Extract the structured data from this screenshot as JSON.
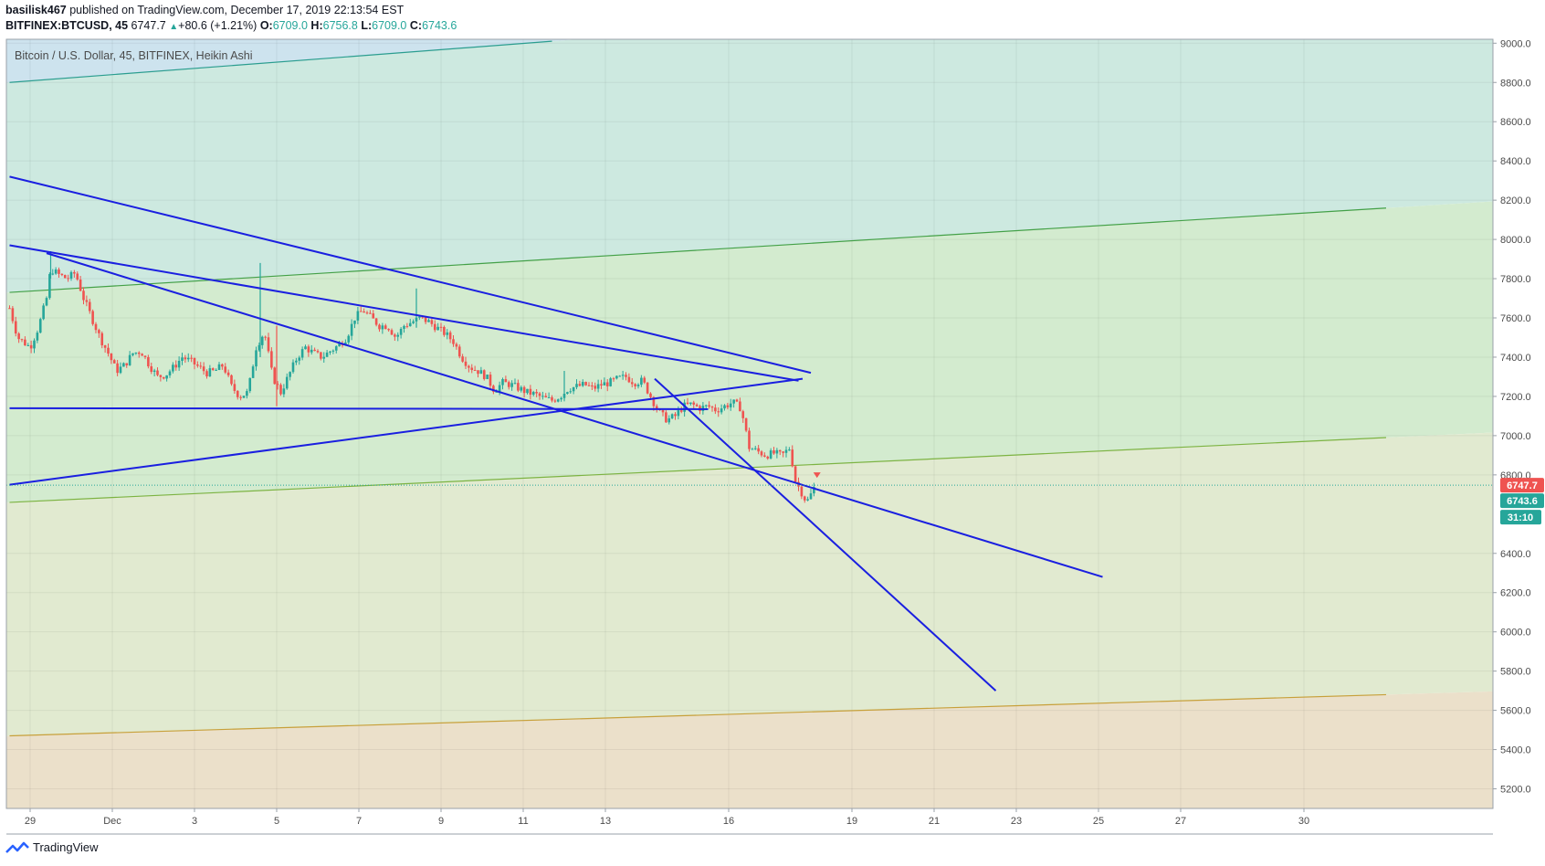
{
  "header": {
    "author": "basilisk467",
    "published_text": " published on TradingView.com, December 17, 2019 22:13:54 EST",
    "symbol": "BITFINEX:BTCUSD, 45",
    "last": "6747.7",
    "change": "+80.6 (+1.21%)",
    "o_label": "O:",
    "o_val": "6709.0",
    "h_label": "H:",
    "h_val": "6756.8",
    "l_label": "L:",
    "l_val": "6709.0",
    "c_label": "C:",
    "c_val": "6743.6"
  },
  "footer": {
    "brand": "TradingView"
  },
  "chart_data": {
    "type": "candlestick",
    "title": "Bitcoin / U.S. Dollar, 45, BITFINEX, Heikin Ashi",
    "ylim": [
      5100,
      9020
    ],
    "y_ticks": [
      "9000.0",
      "8800.0",
      "8600.0",
      "8400.0",
      "8200.0",
      "8000.0",
      "7800.0",
      "7600.0",
      "7400.0",
      "7200.0",
      "7000.0",
      "6800.0",
      "6400.0",
      "6200.0",
      "6000.0",
      "5800.0",
      "5600.0",
      "5400.0",
      "5200.0"
    ],
    "x_ticks": [
      {
        "label": "29",
        "t": 0.0
      },
      {
        "label": "Dec",
        "t": 2.0
      },
      {
        "label": "3",
        "t": 4.0
      },
      {
        "label": "5",
        "t": 6.0
      },
      {
        "label": "7",
        "t": 8.0
      },
      {
        "label": "9",
        "t": 10.0
      },
      {
        "label": "11",
        "t": 12.0
      },
      {
        "label": "13",
        "t": 14.0
      },
      {
        "label": "16",
        "t": 17.0
      },
      {
        "label": "19",
        "t": 20.0
      },
      {
        "label": "21",
        "t": 22.0
      },
      {
        "label": "23",
        "t": 24.0
      },
      {
        "label": "25",
        "t": 26.0
      },
      {
        "label": "27",
        "t": 28.0
      },
      {
        "label": "30",
        "t": 31.0
      }
    ],
    "price_labels": [
      {
        "text": "6747.7",
        "value": 6747.7,
        "color": "#ef5350"
      },
      {
        "text": "6743.6",
        "value": 6743.6,
        "color": "#26a69a"
      },
      {
        "text": "31:10",
        "value": 6580,
        "color": "#26a69a"
      }
    ],
    "ohlc_path": [
      [
        -0.5,
        7650
      ],
      [
        -0.3,
        7500
      ],
      [
        0.0,
        7450
      ],
      [
        0.2,
        7550
      ],
      [
        0.4,
        7700
      ],
      [
        0.5,
        7850
      ],
      [
        0.7,
        7820
      ],
      [
        0.9,
        7800
      ],
      [
        1.1,
        7830
      ],
      [
        1.3,
        7700
      ],
      [
        1.5,
        7600
      ],
      [
        1.7,
        7500
      ],
      [
        1.9,
        7420
      ],
      [
        2.1,
        7330
      ],
      [
        2.3,
        7360
      ],
      [
        2.5,
        7420
      ],
      [
        2.7,
        7430
      ],
      [
        2.9,
        7360
      ],
      [
        3.1,
        7300
      ],
      [
        3.3,
        7310
      ],
      [
        3.5,
        7350
      ],
      [
        3.7,
        7400
      ],
      [
        3.9,
        7380
      ],
      [
        4.1,
        7350
      ],
      [
        4.3,
        7320
      ],
      [
        4.5,
        7330
      ],
      [
        4.7,
        7360
      ],
      [
        4.9,
        7250
      ],
      [
        5.1,
        7200
      ],
      [
        5.3,
        7220
      ],
      [
        5.5,
        7450
      ],
      [
        5.7,
        7530
      ],
      [
        5.9,
        7300
      ],
      [
        6.1,
        7220
      ],
      [
        6.3,
        7310
      ],
      [
        6.5,
        7400
      ],
      [
        6.7,
        7450
      ],
      [
        6.9,
        7420
      ],
      [
        7.1,
        7400
      ],
      [
        7.3,
        7430
      ],
      [
        7.5,
        7460
      ],
      [
        7.7,
        7500
      ],
      [
        7.9,
        7600
      ],
      [
        8.1,
        7640
      ],
      [
        8.3,
        7600
      ],
      [
        8.5,
        7560
      ],
      [
        8.7,
        7560
      ],
      [
        8.9,
        7500
      ],
      [
        9.1,
        7560
      ],
      [
        9.3,
        7580
      ],
      [
        9.5,
        7600
      ],
      [
        9.7,
        7580
      ],
      [
        9.9,
        7550
      ],
      [
        10.1,
        7520
      ],
      [
        10.3,
        7480
      ],
      [
        10.5,
        7400
      ],
      [
        10.7,
        7350
      ],
      [
        10.9,
        7330
      ],
      [
        11.1,
        7300
      ],
      [
        11.3,
        7230
      ],
      [
        11.5,
        7270
      ],
      [
        11.7,
        7260
      ],
      [
        11.9,
        7240
      ],
      [
        12.1,
        7220
      ],
      [
        12.3,
        7210
      ],
      [
        12.5,
        7190
      ],
      [
        12.7,
        7180
      ],
      [
        12.9,
        7200
      ],
      [
        13.1,
        7240
      ],
      [
        13.3,
        7250
      ],
      [
        13.5,
        7260
      ],
      [
        13.7,
        7240
      ],
      [
        13.9,
        7260
      ],
      [
        14.1,
        7270
      ],
      [
        14.3,
        7290
      ],
      [
        14.5,
        7300
      ],
      [
        14.7,
        7270
      ],
      [
        14.9,
        7280
      ],
      [
        15.1,
        7200
      ],
      [
        15.3,
        7120
      ],
      [
        15.5,
        7080
      ],
      [
        15.7,
        7100
      ],
      [
        15.9,
        7150
      ],
      [
        16.1,
        7160
      ],
      [
        16.3,
        7140
      ],
      [
        16.5,
        7150
      ],
      [
        16.7,
        7130
      ],
      [
        16.9,
        7150
      ],
      [
        17.1,
        7170
      ],
      [
        17.3,
        7140
      ],
      [
        17.5,
        6940
      ],
      [
        17.7,
        6920
      ],
      [
        17.9,
        6900
      ],
      [
        18.1,
        6910
      ],
      [
        18.3,
        6900
      ],
      [
        18.5,
        6940
      ],
      [
        18.6,
        6780
      ],
      [
        18.8,
        6700
      ],
      [
        18.9,
        6660
      ],
      [
        19.0,
        6700
      ],
      [
        19.1,
        6745
      ]
    ],
    "trend_lines": [
      {
        "name": "blue-line-1",
        "color": "#1a1fe0",
        "points": [
          [
            -0.5,
            8320
          ],
          [
            19.0,
            7320
          ]
        ]
      },
      {
        "name": "blue-line-2",
        "color": "#1a1fe0",
        "points": [
          [
            -0.5,
            7970
          ],
          [
            18.7,
            7280
          ]
        ]
      },
      {
        "name": "blue-line-3",
        "color": "#1a1fe0",
        "points": [
          [
            0.4,
            7930
          ],
          [
            26.1,
            6280
          ]
        ]
      },
      {
        "name": "blue-line-4",
        "color": "#1a1fe0",
        "points": [
          [
            -0.5,
            6750
          ],
          [
            18.8,
            7290
          ]
        ]
      },
      {
        "name": "blue-line-5",
        "color": "#1a1fe0",
        "points": [
          [
            -0.5,
            7140
          ],
          [
            16.5,
            7135
          ]
        ]
      },
      {
        "name": "blue-line-6",
        "color": "#1a1fe0",
        "points": [
          [
            15.2,
            7290
          ],
          [
            23.5,
            5700
          ]
        ]
      }
    ],
    "channel_lines": [
      {
        "name": "teal-line",
        "color": "#2a9d8f",
        "points": [
          [
            -0.5,
            8800
          ],
          [
            12.7,
            9010
          ]
        ]
      },
      {
        "name": "green-line-top",
        "color": "#43a047",
        "points": [
          [
            -0.5,
            7730
          ],
          [
            33.0,
            8160
          ]
        ]
      },
      {
        "name": "green-line-mid",
        "color": "#7cb342",
        "points": [
          [
            -0.5,
            6660
          ],
          [
            33.0,
            6990
          ]
        ]
      },
      {
        "name": "orange-line",
        "color": "#c7a03a",
        "points": [
          [
            -0.5,
            5470
          ],
          [
            33.0,
            5680
          ]
        ]
      }
    ],
    "bands": [
      {
        "name": "band-teal",
        "color": "#cde9e0",
        "upper": "teal-line",
        "lower": "green-line-top"
      },
      {
        "name": "band-green",
        "color": "#d3ebcf",
        "upper": "green-line-top",
        "lower": "green-line-mid"
      },
      {
        "name": "band-lightgreen",
        "color": "#e1ead0",
        "upper": "green-line-mid",
        "lower": "orange-line"
      },
      {
        "name": "band-orange",
        "color": "#ebe0ca",
        "upper": "orange-line",
        "lower": "bottom"
      }
    ],
    "colors": {
      "up": "#26a69a",
      "down": "#ef5350",
      "grid": "#e1e3e6",
      "axis_text": "#4a4a4a"
    }
  }
}
